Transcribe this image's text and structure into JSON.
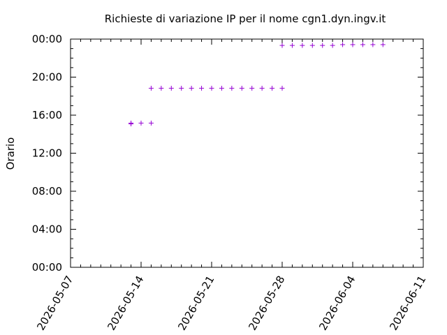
{
  "chart_data": {
    "type": "scatter",
    "title": "Richieste di variazione IP per il nome cgn1.dyn.ingv.it",
    "ylabel": "Orario",
    "xlabel": "",
    "xlim": [
      "2026-05-07",
      "2026-06-11"
    ],
    "ylim": [
      "00:00",
      "24:00"
    ],
    "xticks": [
      "2026-05-07",
      "2026-05-14",
      "2026-05-21",
      "2026-05-28",
      "2026-06-04",
      "2026-06-11"
    ],
    "yticks": [
      "00:00",
      "04:00",
      "08:00",
      "12:00",
      "16:00",
      "20:00",
      "00:00"
    ],
    "marker": "+",
    "grid": false,
    "series": [
      {
        "color": "#9400d3",
        "points": [
          {
            "x": "2026-05-13",
            "y": "15:10"
          },
          {
            "x": "2026-05-13",
            "y": "15:05"
          },
          {
            "x": "2026-05-14",
            "y": "15:10"
          },
          {
            "x": "2026-05-15",
            "y": "15:10"
          },
          {
            "x": "2026-05-15",
            "y": "18:50"
          },
          {
            "x": "2026-05-16",
            "y": "18:50"
          },
          {
            "x": "2026-05-17",
            "y": "18:50"
          },
          {
            "x": "2026-05-18",
            "y": "18:50"
          },
          {
            "x": "2026-05-19",
            "y": "18:50"
          },
          {
            "x": "2026-05-20",
            "y": "18:50"
          },
          {
            "x": "2026-05-21",
            "y": "18:50"
          },
          {
            "x": "2026-05-22",
            "y": "18:50"
          },
          {
            "x": "2026-05-23",
            "y": "18:50"
          },
          {
            "x": "2026-05-24",
            "y": "18:50"
          },
          {
            "x": "2026-05-25",
            "y": "18:50"
          },
          {
            "x": "2026-05-26",
            "y": "18:50"
          },
          {
            "x": "2026-05-27",
            "y": "18:50"
          },
          {
            "x": "2026-05-28",
            "y": "18:50"
          },
          {
            "x": "2026-05-28",
            "y": "23:20"
          },
          {
            "x": "2026-05-29",
            "y": "23:20"
          },
          {
            "x": "2026-05-30",
            "y": "23:20"
          },
          {
            "x": "2026-05-31",
            "y": "23:20"
          },
          {
            "x": "2026-06-01",
            "y": "23:20"
          },
          {
            "x": "2026-06-02",
            "y": "23:20"
          },
          {
            "x": "2026-06-03",
            "y": "23:25"
          },
          {
            "x": "2026-06-04",
            "y": "23:25"
          },
          {
            "x": "2026-06-05",
            "y": "23:25"
          },
          {
            "x": "2026-06-06",
            "y": "23:25"
          },
          {
            "x": "2026-06-07",
            "y": "23:25"
          }
        ]
      }
    ]
  }
}
